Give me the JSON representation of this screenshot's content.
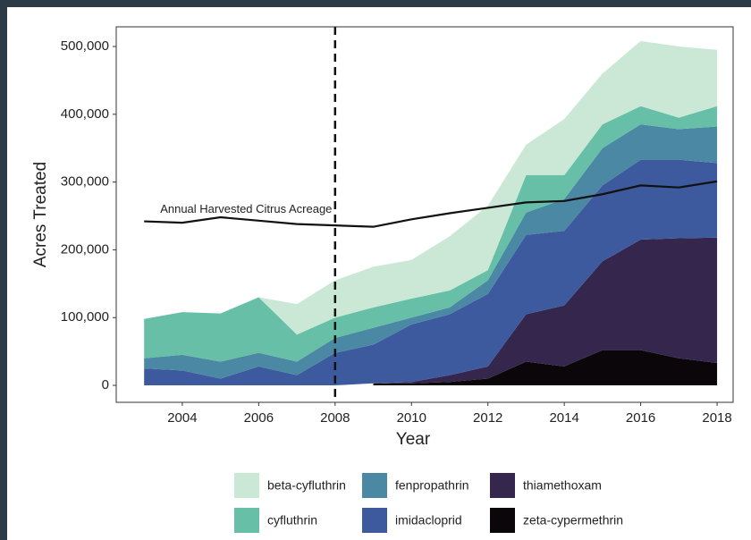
{
  "chart_data": {
    "type": "stacked_area",
    "x_label": "Year",
    "y_label": "Acres Treated",
    "x": [
      2003,
      2004,
      2005,
      2006,
      2007,
      2008,
      2009,
      2010,
      2011,
      2012,
      2013,
      2014,
      2015,
      2016,
      2017,
      2018
    ],
    "series": [
      {
        "name": "zeta-cypermethrin",
        "color": "#0b0609",
        "values": [
          null,
          null,
          null,
          null,
          null,
          null,
          3000,
          3000,
          5000,
          10000,
          35000,
          28000,
          52000,
          52000,
          40000,
          33000
        ]
      },
      {
        "name": "thiamethoxam",
        "color": "#35264d",
        "values": [
          null,
          null,
          null,
          null,
          null,
          null,
          0,
          2000,
          10000,
          18000,
          70000,
          90000,
          131000,
          163000,
          177000,
          185000
        ]
      },
      {
        "name": "imidacloprid",
        "color": "#3e5a9f",
        "values": [
          25000,
          22000,
          10000,
          28000,
          15000,
          48000,
          57000,
          85000,
          90000,
          107000,
          117000,
          110000,
          112000,
          118000,
          116000,
          110000
        ]
      },
      {
        "name": "fenpropathrin",
        "color": "#4a88a4",
        "values": [
          15000,
          23000,
          25000,
          20000,
          20000,
          22000,
          25000,
          10000,
          10000,
          20000,
          33000,
          47000,
          55000,
          52000,
          45000,
          54000
        ]
      },
      {
        "name": "cyfluthrin",
        "color": "#66bfa6",
        "values": [
          58000,
          63000,
          71000,
          82000,
          40000,
          30000,
          30000,
          28000,
          25000,
          15000,
          55000,
          35000,
          35000,
          27000,
          17000,
          30000
        ]
      },
      {
        "name": "beta-cyfluthrin",
        "color": "#cbe8d6",
        "values": [
          0,
          0,
          0,
          0,
          45000,
          55000,
          60000,
          57000,
          80000,
          95000,
          45000,
          83000,
          75000,
          96000,
          105000,
          83000
        ]
      }
    ],
    "line": {
      "label": "Annual Harvested Citrus Acreage",
      "color": "#111111",
      "values": [
        242000,
        240000,
        248000,
        243000,
        238000,
        236000,
        234000,
        245000,
        254000,
        262000,
        270000,
        272000,
        282000,
        295000,
        292000,
        301000
      ]
    },
    "reference_line_x": 2008,
    "xlim": [
      2002.27,
      2018.42
    ],
    "ylim": [
      -25000,
      529000
    ],
    "xticks": [
      2004,
      2006,
      2008,
      2010,
      2012,
      2014,
      2016,
      2018
    ],
    "yticks": [
      0,
      {
        "value": 100000,
        "label": "100,000"
      },
      {
        "value": 200000,
        "label": "200,000"
      },
      {
        "value": 300000,
        "label": "300,000"
      },
      {
        "value": 400000,
        "label": "400,000"
      },
      {
        "value": 500000,
        "label": "500,000"
      }
    ]
  }
}
